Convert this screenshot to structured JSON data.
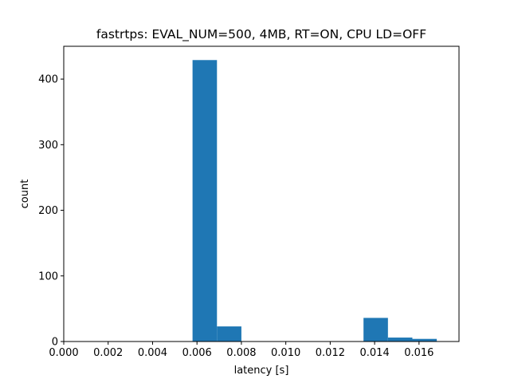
{
  "chart_data": {
    "type": "bar",
    "title": "fastrtps: EVAL_NUM=500, 4MB, RT=ON, CPU LD=OFF",
    "xlabel": "latency [s]",
    "ylabel": "count",
    "xlim": [
      0.0,
      0.0178
    ],
    "ylim": [
      0,
      450
    ],
    "xticks": [
      0.0,
      0.002,
      0.004,
      0.006,
      0.008,
      0.01,
      0.012,
      0.014,
      0.016
    ],
    "xtick_labels": [
      "0.000",
      "0.002",
      "0.004",
      "0.006",
      "0.008",
      "0.010",
      "0.012",
      "0.014",
      "0.016"
    ],
    "yticks": [
      0,
      100,
      200,
      300,
      400
    ],
    "ytick_labels": [
      "0",
      "100",
      "200",
      "300",
      "400"
    ],
    "bins": [
      {
        "x0": 0.0058,
        "x1": 0.0069,
        "count": 429
      },
      {
        "x0": 0.0069,
        "x1": 0.008,
        "count": 23
      },
      {
        "x0": 0.008,
        "x1": 0.0091,
        "count": 0
      },
      {
        "x0": 0.0091,
        "x1": 0.0102,
        "count": 0
      },
      {
        "x0": 0.0102,
        "x1": 0.0113,
        "count": 0
      },
      {
        "x0": 0.0113,
        "x1": 0.0124,
        "count": 0
      },
      {
        "x0": 0.0124,
        "x1": 0.0135,
        "count": 0
      },
      {
        "x0": 0.0135,
        "x1": 0.0146,
        "count": 36
      },
      {
        "x0": 0.0146,
        "x1": 0.0157,
        "count": 6
      },
      {
        "x0": 0.0157,
        "x1": 0.0168,
        "count": 4
      }
    ],
    "bar_color": "#1f77b4",
    "grid": false,
    "legend": "none"
  }
}
